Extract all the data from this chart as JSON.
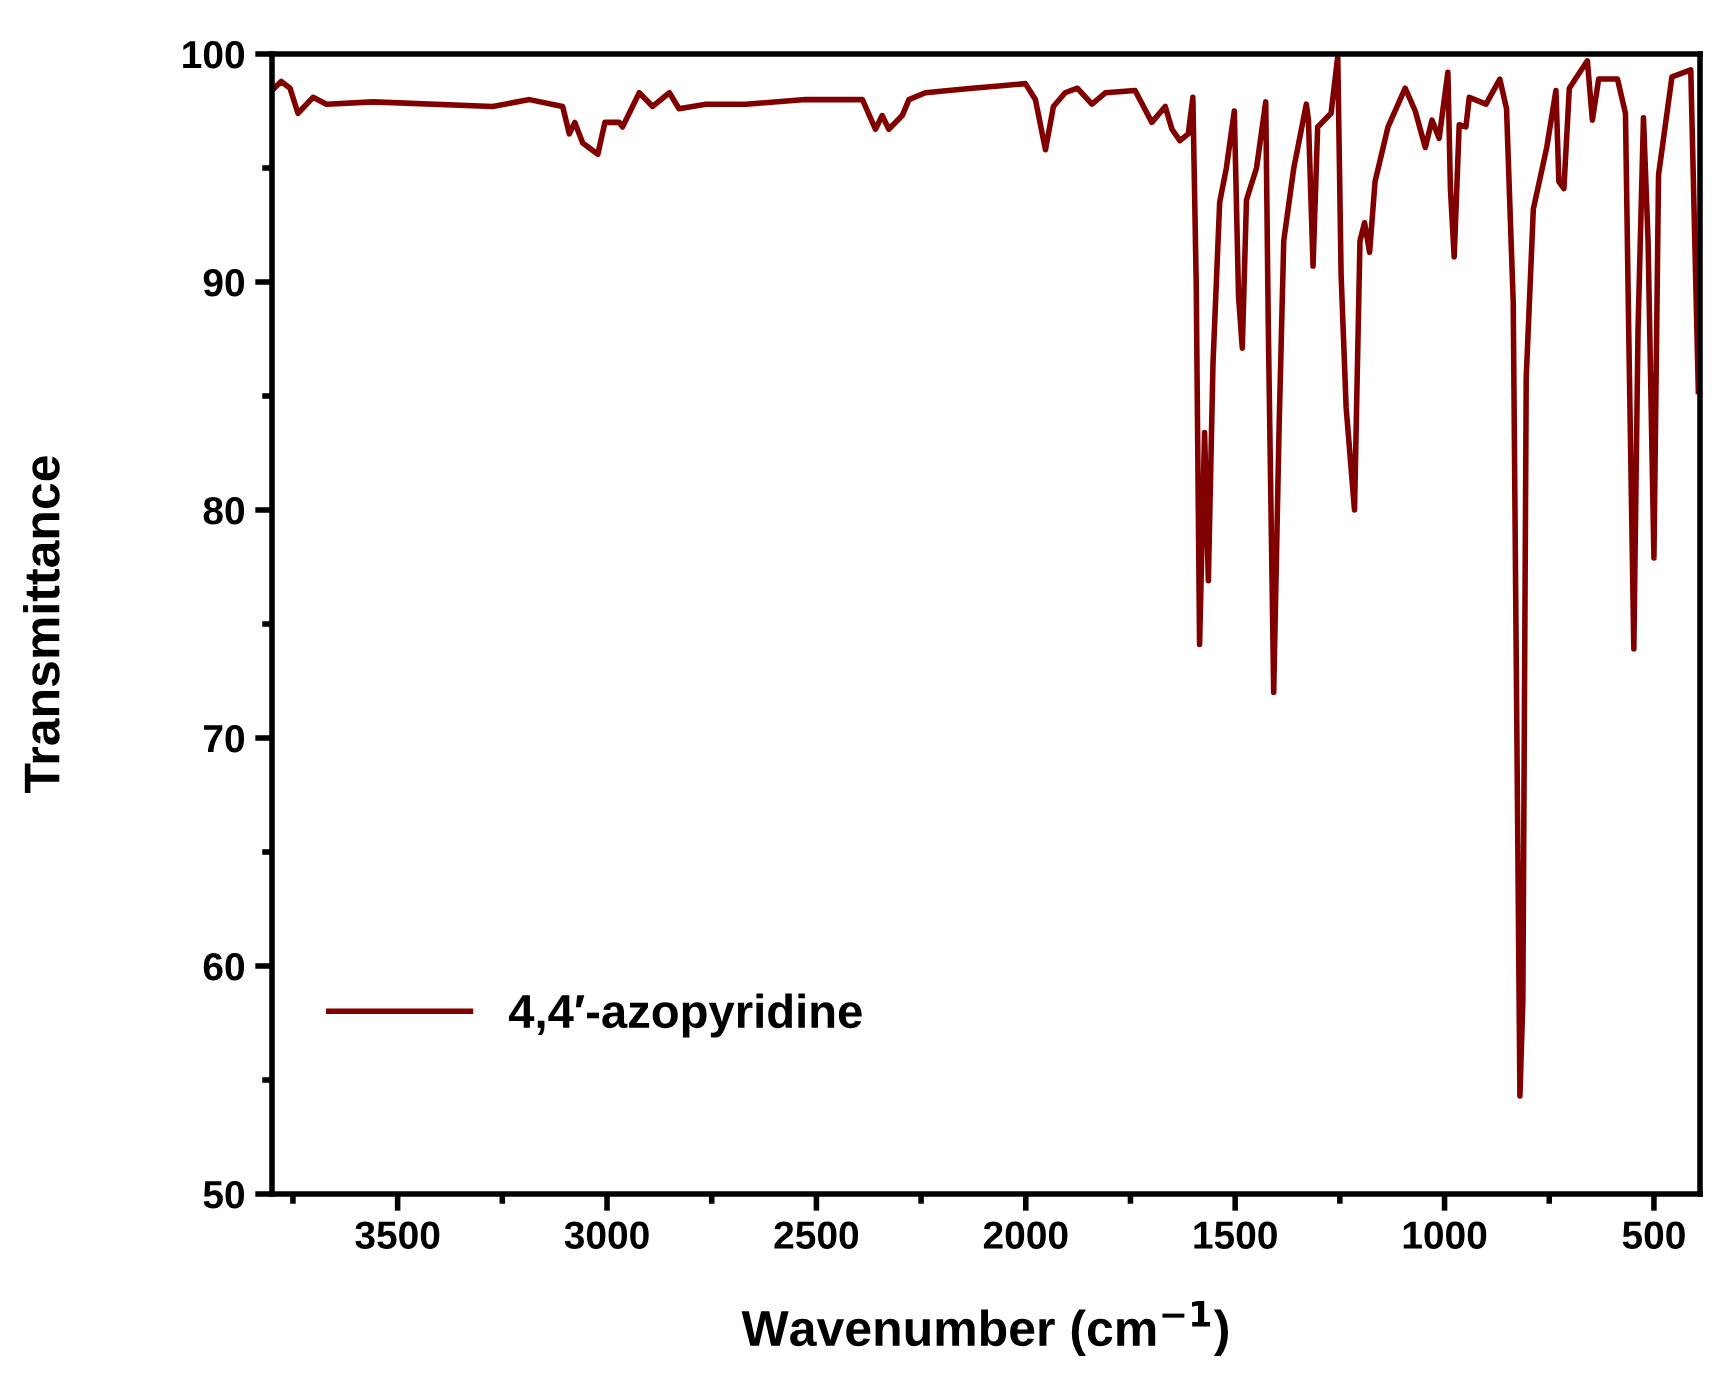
{
  "chart_data": {
    "type": "line",
    "xlabel": "Wavenumber (cm$^{−1}$)",
    "ylabel": "Transmittance",
    "xlim": [
      3800,
      390
    ],
    "ylim": [
      50,
      100
    ],
    "xticks": [
      {
        "value": 3750,
        "label": null
      },
      3500,
      {
        "value": 3250,
        "label": null
      },
      3000,
      {
        "value": 2750,
        "label": null
      },
      2500,
      {
        "value": 2250,
        "label": null
      },
      2000,
      {
        "value": 1750,
        "label": null
      },
      1500,
      {
        "value": 1250,
        "label": null
      },
      1000,
      {
        "value": 750,
        "label": null
      },
      500
    ],
    "yticks": [
      50,
      {
        "value": 55,
        "label": null
      },
      60,
      {
        "value": 65,
        "label": null
      },
      70,
      {
        "value": 75,
        "label": null
      },
      80,
      {
        "value": 85,
        "label": null
      },
      90,
      {
        "value": 95,
        "label": null
      },
      100
    ],
    "grid": false,
    "legend": "lower left",
    "marker": "none",
    "line_style": "solid",
    "series": [
      {
        "name": "4,4′-azopyridine",
        "color": "#800000",
        "x": [
          3800,
          3778,
          3757,
          3738,
          3702,
          3670,
          3559,
          3273,
          3185,
          3106,
          3090,
          3077,
          3058,
          3022,
          3005,
          2971,
          2963,
          2923,
          2891,
          2851,
          2828,
          2764,
          2669,
          2526,
          2414,
          2390,
          2359,
          2343,
          2327,
          2295,
          2279,
          2240,
          2128,
          2065,
          2001,
          1977,
          1953,
          1934,
          1906,
          1877,
          1842,
          1810,
          1739,
          1699,
          1667,
          1651,
          1632,
          1612,
          1601,
          1593,
          1585,
          1573,
          1564,
          1553,
          1537,
          1521,
          1502,
          1492,
          1483,
          1473,
          1449,
          1427,
          1421,
          1408,
          1395,
          1384,
          1360,
          1330,
          1325,
          1314,
          1303,
          1271,
          1255,
          1247,
          1235,
          1215,
          1202,
          1191,
          1179,
          1166,
          1135,
          1094,
          1070,
          1046,
          1030,
          1013,
          992,
          986,
          977,
          965,
          949,
          941,
          901,
          868,
          852,
          836,
          820,
          813,
          805,
          788,
          756,
          734,
          727,
          715,
          702,
          659,
          647,
          632,
          587,
          568,
          560,
          548,
          538,
          525,
          514,
          500,
          489,
          457,
          412,
          394
        ],
        "values": [
          98.4,
          98.8,
          98.5,
          97.4,
          98.1,
          97.8,
          97.9,
          97.7,
          98.0,
          97.7,
          96.5,
          97.0,
          96.1,
          95.6,
          97.0,
          97.0,
          96.8,
          98.3,
          97.7,
          98.3,
          97.6,
          97.8,
          97.8,
          98.0,
          98.0,
          98.0,
          96.7,
          97.3,
          96.7,
          97.3,
          98.0,
          98.3,
          98.5,
          98.6,
          98.7,
          98.0,
          95.8,
          97.7,
          98.3,
          98.5,
          97.8,
          98.3,
          98.4,
          97.0,
          97.7,
          96.7,
          96.2,
          96.5,
          98.1,
          89.9,
          74.1,
          83.4,
          76.9,
          86.4,
          93.5,
          95.0,
          97.5,
          89.4,
          87.1,
          93.6,
          95.0,
          97.9,
          88.2,
          72.0,
          83.7,
          91.8,
          95.0,
          97.8,
          97.1,
          90.7,
          96.8,
          97.4,
          99.9,
          90.3,
          84.5,
          80.0,
          91.8,
          92.6,
          91.3,
          94.4,
          96.8,
          98.5,
          97.5,
          95.9,
          97.1,
          96.3,
          99.2,
          94.1,
          91.1,
          96.9,
          96.8,
          98.1,
          97.8,
          98.9,
          97.6,
          89.1,
          54.3,
          58.5,
          85.8,
          93.2,
          95.9,
          98.4,
          94.4,
          94.1,
          98.5,
          99.7,
          97.1,
          98.9,
          98.9,
          97.4,
          87.6,
          73.9,
          87.9,
          97.2,
          91.8,
          77.9,
          94.7,
          99.0,
          99.3,
          85.2
        ]
      }
    ]
  }
}
